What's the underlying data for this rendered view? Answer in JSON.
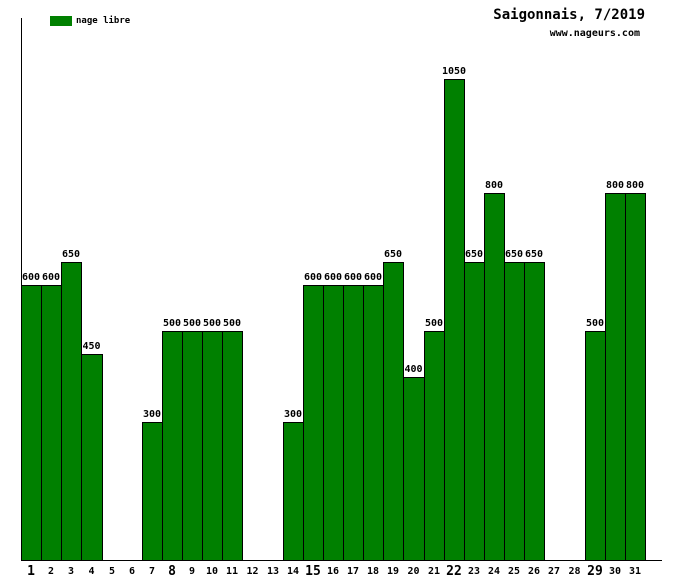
{
  "header": {
    "title": "Saigonnais, 7/2019",
    "website": "www.nageurs.com"
  },
  "legend": {
    "label": "nage libre",
    "color": "#008000"
  },
  "chart_data": {
    "type": "bar",
    "title": "Saigonnais, 7/2019",
    "series_name": "nage libre",
    "categories": [
      1,
      2,
      3,
      4,
      5,
      6,
      7,
      8,
      9,
      10,
      11,
      12,
      13,
      14,
      15,
      16,
      17,
      18,
      19,
      20,
      21,
      22,
      23,
      24,
      25,
      26,
      27,
      28,
      29,
      30,
      31
    ],
    "values": [
      600,
      600,
      650,
      450,
      0,
      0,
      300,
      500,
      500,
      500,
      500,
      0,
      0,
      300,
      600,
      600,
      600,
      600,
      650,
      400,
      500,
      1050,
      650,
      800,
      650,
      650,
      0,
      0,
      500,
      800,
      800
    ],
    "value_labels": true,
    "bold_x_ticks": [
      1,
      8,
      15,
      22,
      29
    ],
    "bar_color": "#008000",
    "bar_border_color": "#000000",
    "xlabel": "",
    "ylabel": "",
    "ylim": [
      0,
      1180
    ],
    "grid": false,
    "legend_position": "top-left"
  }
}
